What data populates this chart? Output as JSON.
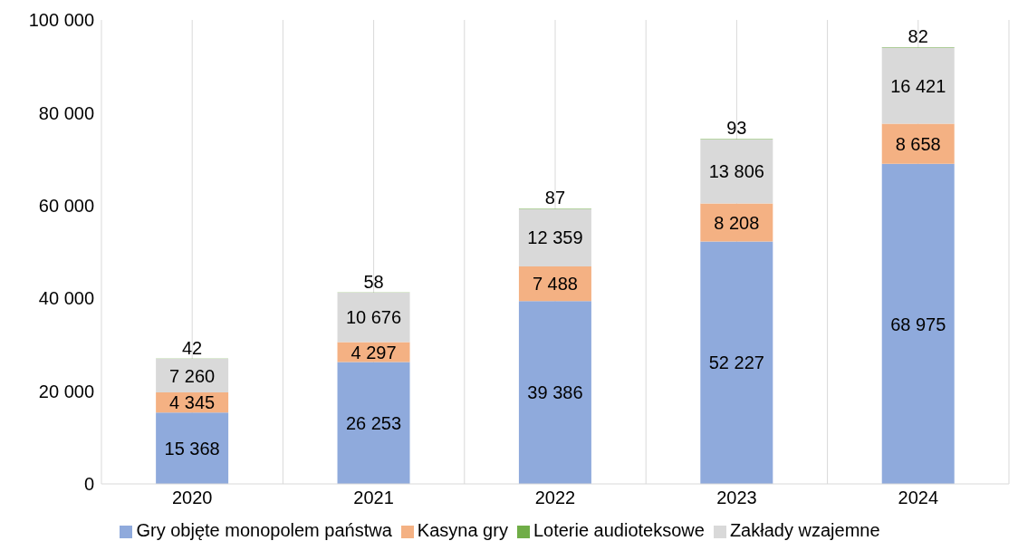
{
  "chart_data": {
    "type": "bar",
    "stacked": true,
    "categories": [
      "2020",
      "2021",
      "2022",
      "2023",
      "2024"
    ],
    "ylim": [
      0,
      100000
    ],
    "yticks": [
      {
        "value": 0,
        "label": "0"
      },
      {
        "value": 20000,
        "label": "20 000"
      },
      {
        "value": 40000,
        "label": "40 000"
      },
      {
        "value": 60000,
        "label": "60 000"
      },
      {
        "value": 80000,
        "label": "80 000"
      },
      {
        "value": 100000,
        "label": "100 000"
      }
    ],
    "grid": "x",
    "legend": "bottom",
    "series": [
      {
        "name": "Gry objęte monopolem państwa",
        "color": "#8faadc",
        "values": [
          15368,
          26253,
          39386,
          52227,
          68975
        ],
        "value_labels": [
          "15 368",
          "26 253",
          "39 386",
          "52 227",
          "68 975"
        ]
      },
      {
        "name": "Kasyna gry",
        "color": "#f4b183",
        "values": [
          4345,
          4297,
          7488,
          8208,
          8658
        ],
        "value_labels": [
          "4 345",
          "4 297",
          "7 488",
          "8 208",
          "8 658"
        ]
      },
      {
        "name": "Zakłady wzajemne",
        "color": "#d9d9d9",
        "values": [
          7260,
          10676,
          12359,
          13806,
          16421
        ],
        "value_labels": [
          "7 260",
          "10 676",
          "12 359",
          "13 806",
          "16 421"
        ]
      },
      {
        "name": "Loterie audioteksowe",
        "color": "#70ad47",
        "values": [
          42,
          58,
          87,
          93,
          82
        ],
        "value_labels": [
          "42",
          "58",
          "87",
          "93",
          "82"
        ]
      }
    ]
  }
}
